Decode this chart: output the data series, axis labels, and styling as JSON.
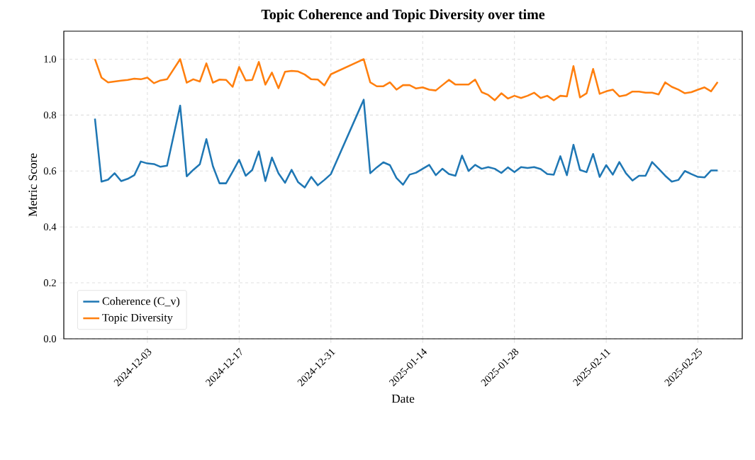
{
  "chart_data": {
    "type": "line",
    "title": "Topic Coherence and Topic Diversity over time",
    "xlabel": "Date",
    "ylabel": "Metric Score",
    "x": [
      "2024-11-25",
      "2024-11-26",
      "2024-11-27",
      "2024-11-28",
      "2024-11-29",
      "2024-11-30",
      "2024-12-01",
      "2024-12-02",
      "2024-12-03",
      "2024-12-04",
      "2024-12-05",
      "2024-12-06",
      "2024-12-08",
      "2024-12-09",
      "2024-12-10",
      "2024-12-11",
      "2024-12-12",
      "2024-12-13",
      "2024-12-14",
      "2024-12-15",
      "2024-12-16",
      "2024-12-17",
      "2024-12-18",
      "2024-12-19",
      "2024-12-20",
      "2024-12-21",
      "2024-12-22",
      "2024-12-23",
      "2024-12-24",
      "2024-12-25",
      "2024-12-26",
      "2024-12-27",
      "2024-12-28",
      "2024-12-29",
      "2024-12-30",
      "2024-12-31",
      "2025-01-05",
      "2025-01-06",
      "2025-01-07",
      "2025-01-08",
      "2025-01-09",
      "2025-01-10",
      "2025-01-11",
      "2025-01-12",
      "2025-01-13",
      "2025-01-14",
      "2025-01-15",
      "2025-01-16",
      "2025-01-17",
      "2025-01-18",
      "2025-01-19",
      "2025-01-20",
      "2025-01-21",
      "2025-01-22",
      "2025-01-23",
      "2025-01-24",
      "2025-01-25",
      "2025-01-26",
      "2025-01-27",
      "2025-01-28",
      "2025-01-29",
      "2025-01-30",
      "2025-01-31",
      "2025-02-01",
      "2025-02-02",
      "2025-02-03",
      "2025-02-04",
      "2025-02-05",
      "2025-02-06",
      "2025-02-07",
      "2025-02-08",
      "2025-02-09",
      "2025-02-10",
      "2025-02-11",
      "2025-02-12",
      "2025-02-13",
      "2025-02-14",
      "2025-02-15",
      "2025-02-16",
      "2025-02-17",
      "2025-02-18",
      "2025-02-19",
      "2025-02-20",
      "2025-02-21",
      "2025-02-22",
      "2025-02-23",
      "2025-02-24",
      "2025-02-25",
      "2025-02-26",
      "2025-02-27",
      "2025-02-28"
    ],
    "series": [
      {
        "name": "Coherence (C_v)",
        "color": "#1f77b4",
        "values": [
          0.787,
          0.562,
          0.569,
          0.592,
          0.564,
          0.572,
          0.585,
          0.634,
          0.627,
          0.625,
          0.615,
          0.619,
          0.834,
          0.581,
          0.604,
          0.624,
          0.714,
          0.617,
          0.556,
          0.556,
          0.597,
          0.64,
          0.583,
          0.604,
          0.67,
          0.564,
          0.648,
          0.592,
          0.558,
          0.604,
          0.56,
          0.541,
          0.579,
          0.549,
          0.568,
          0.589,
          0.855,
          0.592,
          0.613,
          0.631,
          0.621,
          0.575,
          0.551,
          0.587,
          0.594,
          0.608,
          0.622,
          0.585,
          0.608,
          0.589,
          0.583,
          0.655,
          0.6,
          0.622,
          0.608,
          0.614,
          0.608,
          0.593,
          0.613,
          0.596,
          0.614,
          0.611,
          0.614,
          0.607,
          0.589,
          0.587,
          0.653,
          0.585,
          0.694,
          0.604,
          0.596,
          0.661,
          0.579,
          0.621,
          0.587,
          0.632,
          0.592,
          0.566,
          0.583,
          0.583,
          0.632,
          0.608,
          0.583,
          0.562,
          0.568,
          0.6,
          0.589,
          0.579,
          0.577,
          0.602,
          0.602
        ]
      },
      {
        "name": "Topic Diversity",
        "color": "#ff7f0e",
        "values": [
          1.0,
          0.934,
          0.917,
          0.92,
          0.923,
          0.926,
          0.93,
          0.928,
          0.934,
          0.914,
          0.924,
          0.928,
          1.0,
          0.916,
          0.928,
          0.92,
          0.985,
          0.916,
          0.927,
          0.926,
          0.901,
          0.972,
          0.924,
          0.926,
          0.99,
          0.909,
          0.952,
          0.896,
          0.955,
          0.958,
          0.956,
          0.945,
          0.928,
          0.927,
          0.906,
          0.946,
          1.0,
          0.917,
          0.903,
          0.903,
          0.917,
          0.891,
          0.907,
          0.907,
          0.895,
          0.899,
          0.891,
          0.888,
          0.907,
          0.926,
          0.909,
          0.909,
          0.909,
          0.927,
          0.882,
          0.872,
          0.853,
          0.878,
          0.859,
          0.869,
          0.861,
          0.869,
          0.88,
          0.861,
          0.869,
          0.853,
          0.869,
          0.867,
          0.975,
          0.863,
          0.878,
          0.965,
          0.876,
          0.885,
          0.891,
          0.867,
          0.871,
          0.884,
          0.884,
          0.88,
          0.88,
          0.874,
          0.917,
          0.901,
          0.891,
          0.878,
          0.882,
          0.891,
          0.899,
          0.885,
          0.918
        ]
      }
    ],
    "xlim": [
      "2024-11-20T06:00",
      "2025-03-03T18:00"
    ],
    "xticks": [
      "2024-12-03",
      "2024-12-17",
      "2024-12-31",
      "2025-01-14",
      "2025-01-28",
      "2025-02-11",
      "2025-02-25"
    ],
    "ylim": [
      0,
      1.1
    ],
    "yticks": [
      {
        "value": 0,
        "label": "0.0"
      },
      {
        "value": 0.2,
        "label": "0.2"
      },
      {
        "value": 0.4,
        "label": "0.4"
      },
      {
        "value": 0.6,
        "label": "0.6"
      },
      {
        "value": 0.8,
        "label": "0.8"
      },
      {
        "value": 1.0,
        "label": "1.0"
      }
    ],
    "grid": true,
    "legend": "bottom left",
    "line_style": "solid"
  }
}
